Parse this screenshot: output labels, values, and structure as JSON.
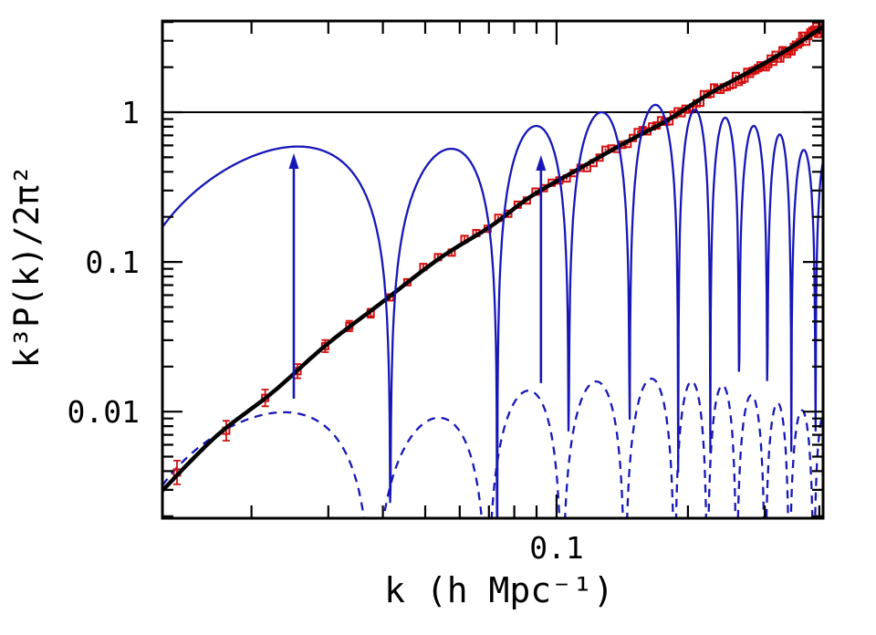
{
  "figure": {
    "description": "Log-log plot of the dimensionless matter power spectrum with baryon acoustic oscillation components"
  },
  "colors": {
    "background": "#ffffff",
    "frame": "#000000",
    "black_curve": "#000000",
    "red_points": "#d40f0f",
    "blue_curves": "#1717b8",
    "reference_line": "#000000"
  },
  "chart_data": {
    "type": "line",
    "title": "",
    "xlabel": "k (h Mpc⁻¹)",
    "ylabel": "k³P(k)/2π²",
    "legend": "none",
    "grid": false,
    "x_axis": {
      "scale": "log",
      "min": 0.0125,
      "max": 0.408,
      "major_ticks": [
        0.1
      ],
      "major_tick_labels": [
        "0.1"
      ],
      "minor_ticks": [
        0.02,
        0.03,
        0.04,
        0.05,
        0.06,
        0.07,
        0.08,
        0.09,
        0.2,
        0.3,
        0.4
      ]
    },
    "y_axis": {
      "scale": "log",
      "min": 0.00194,
      "max": 4.07,
      "major_ticks": [
        1,
        0.1,
        0.01
      ],
      "major_tick_labels": [
        "1",
        "0.1",
        "0.01"
      ],
      "minor_ticks": [
        0.002,
        0.003,
        0.004,
        0.005,
        0.006,
        0.007,
        0.008,
        0.009,
        0.02,
        0.03,
        0.04,
        0.05,
        0.06,
        0.07,
        0.08,
        0.09,
        0.2,
        0.3,
        0.4,
        0.5,
        0.6,
        0.7,
        0.8,
        0.9,
        2,
        3,
        4
      ]
    },
    "reference_line": {
      "y": 1
    },
    "series": {
      "black_curve": {
        "name": "matter power spectrum model (thick black solid)",
        "loglog_anchors": [
          [
            -1.904,
            -2.53
          ],
          [
            -1.78,
            -2.165
          ],
          [
            -1.65,
            -1.87
          ],
          [
            -1.53,
            -1.56
          ],
          [
            -1.4,
            -1.27
          ],
          [
            -1.27,
            -0.98
          ],
          [
            -1.15,
            -0.76
          ],
          [
            -1.06,
            -0.565
          ],
          [
            -0.95,
            -0.38
          ],
          [
            -0.85,
            -0.215
          ],
          [
            -0.75,
            -0.06
          ],
          [
            -0.644,
            0.134
          ],
          [
            -0.54,
            0.3
          ],
          [
            -0.456,
            0.445
          ],
          [
            -0.39,
            0.57
          ]
        ]
      },
      "red_points": {
        "name": "measured band powers (red open squares with error bars)",
        "k_start": 0.0135,
        "k_step": 0.004,
        "count": 99,
        "jitter_dex_base": 0.022,
        "jitter_dex_slope": 0.016,
        "error_dex_floor": 0.009,
        "error_dex_amp": 0.07,
        "error_decay_points": 5
      },
      "blue_solid": {
        "name": "baryon acoustic oscillation component (blue solid)",
        "zero_nodes_k": [
          0.0095,
          0.0416,
          0.0731,
          0.1066,
          0.147,
          0.19,
          0.225,
          0.262,
          0.304,
          0.345,
          0.392,
          0.434
        ],
        "hump_peak_values": [
          0.59,
          0.57,
          0.81,
          1.0,
          1.12,
          1.04,
          0.92,
          0.81,
          0.71,
          0.56,
          0.5
        ]
      },
      "blue_dashed": {
        "name": "suppressed oscillation component (blue dashed)",
        "zero_nodes_k": [
          0.0095,
          0.038,
          0.0695,
          0.103,
          0.1435,
          0.1865,
          0.2215,
          0.2585,
          0.3005,
          0.3415,
          0.3885,
          0.4305
        ],
        "hump_peak_values": [
          0.0099,
          0.0091,
          0.0138,
          0.0159,
          0.0166,
          0.0159,
          0.015,
          0.0129,
          0.0114,
          0.0102,
          0.0095
        ]
      }
    },
    "arrows": [
      {
        "k": 0.025,
        "y_from": 0.0122,
        "y_to": 0.532
      },
      {
        "k": 0.0921,
        "y_from": 0.0155,
        "y_to": 0.517
      }
    ]
  }
}
